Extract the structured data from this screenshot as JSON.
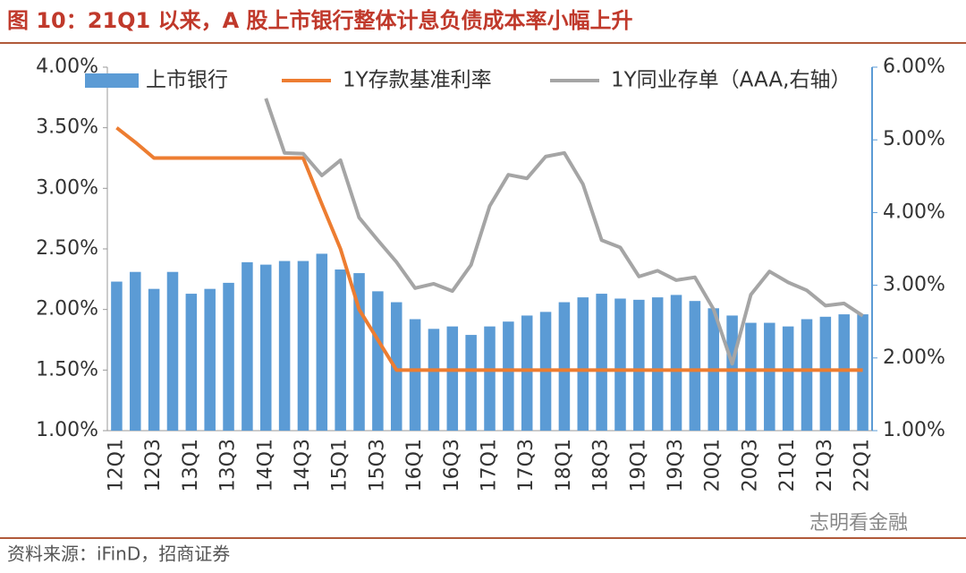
{
  "chart_data": {
    "type": "bar",
    "title": "图 10：21Q1 以来，A 股上市银行整体计息负债成本率小幅上升",
    "source": "资料来源：iFinD，招商证券",
    "watermark": "志明看金融",
    "categories": [
      "12Q1",
      null,
      "12Q3",
      null,
      "13Q1",
      null,
      "13Q3",
      null,
      "14Q1",
      null,
      "14Q3",
      null,
      "15Q1",
      null,
      "15Q3",
      null,
      "16Q1",
      null,
      "16Q3",
      null,
      "17Q1",
      null,
      "17Q3",
      null,
      "18Q1",
      null,
      "18Q3",
      null,
      "19Q1",
      null,
      "19Q3",
      null,
      "20Q1",
      null,
      "20Q3",
      null,
      "21Q1",
      null,
      "21Q3",
      null,
      "22Q1"
    ],
    "series": [
      {
        "name": "上市银行",
        "type": "bar",
        "color": "#5b9bd5",
        "values": [
          2.23,
          2.31,
          2.17,
          2.31,
          2.13,
          2.17,
          2.22,
          2.39,
          2.37,
          2.4,
          2.4,
          2.46,
          2.33,
          2.3,
          2.15,
          2.06,
          1.92,
          1.84,
          1.86,
          1.79,
          1.86,
          1.9,
          1.95,
          1.98,
          2.06,
          2.1,
          2.13,
          2.09,
          2.08,
          2.1,
          2.12,
          2.07,
          2.01,
          1.95,
          1.89,
          1.89,
          1.86,
          1.92,
          1.94,
          1.96,
          1.96
        ]
      },
      {
        "name": "1Y存款基准利率",
        "type": "line",
        "color": "#ed7d31",
        "values": [
          3.5,
          3.38,
          3.25,
          3.25,
          3.25,
          3.25,
          3.25,
          3.25,
          3.25,
          3.25,
          3.25,
          2.87,
          2.5,
          2.0,
          1.75,
          1.5,
          1.5,
          1.5,
          1.5,
          1.5,
          1.5,
          1.5,
          1.5,
          1.5,
          1.5,
          1.5,
          1.5,
          1.5,
          1.5,
          1.5,
          1.5,
          1.5,
          1.5,
          1.5,
          1.5,
          1.5,
          1.5,
          1.5,
          1.5,
          1.5,
          1.5
        ]
      },
      {
        "name": "1Y同业存单（AAA,右轴）",
        "type": "line",
        "axis": "y2",
        "color": "#a5a5a5",
        "values": [
          null,
          null,
          null,
          null,
          null,
          null,
          null,
          null,
          5.57,
          4.82,
          4.81,
          4.51,
          4.72,
          3.93,
          3.62,
          3.32,
          2.96,
          3.02,
          2.92,
          3.28,
          4.09,
          4.52,
          4.47,
          4.77,
          4.82,
          4.39,
          3.62,
          3.52,
          3.12,
          3.2,
          3.07,
          3.11,
          2.67,
          1.92,
          2.87,
          3.19,
          3.04,
          2.93,
          2.72,
          2.75,
          2.58
        ]
      }
    ],
    "ylim": [
      1.0,
      4.0
    ],
    "yticks": [
      {
        "value": 1.0,
        "label": "1.00%"
      },
      {
        "value": 1.5,
        "label": "1.50%"
      },
      {
        "value": 2.0,
        "label": "2.00%"
      },
      {
        "value": 2.5,
        "label": "2.50%"
      },
      {
        "value": 3.0,
        "label": "3.00%"
      },
      {
        "value": 3.5,
        "label": "3.50%"
      },
      {
        "value": 4.0,
        "label": "4.00%"
      }
    ],
    "y2lim": [
      1.0,
      6.0
    ],
    "y2ticks": [
      {
        "value": 1.0,
        "label": "1.00%"
      },
      {
        "value": 2.0,
        "label": "2.00%"
      },
      {
        "value": 3.0,
        "label": "3.00%"
      },
      {
        "value": 4.0,
        "label": "4.00%"
      },
      {
        "value": 5.0,
        "label": "5.00%"
      },
      {
        "value": 6.0,
        "label": "6.00%"
      }
    ],
    "legend": "top"
  }
}
